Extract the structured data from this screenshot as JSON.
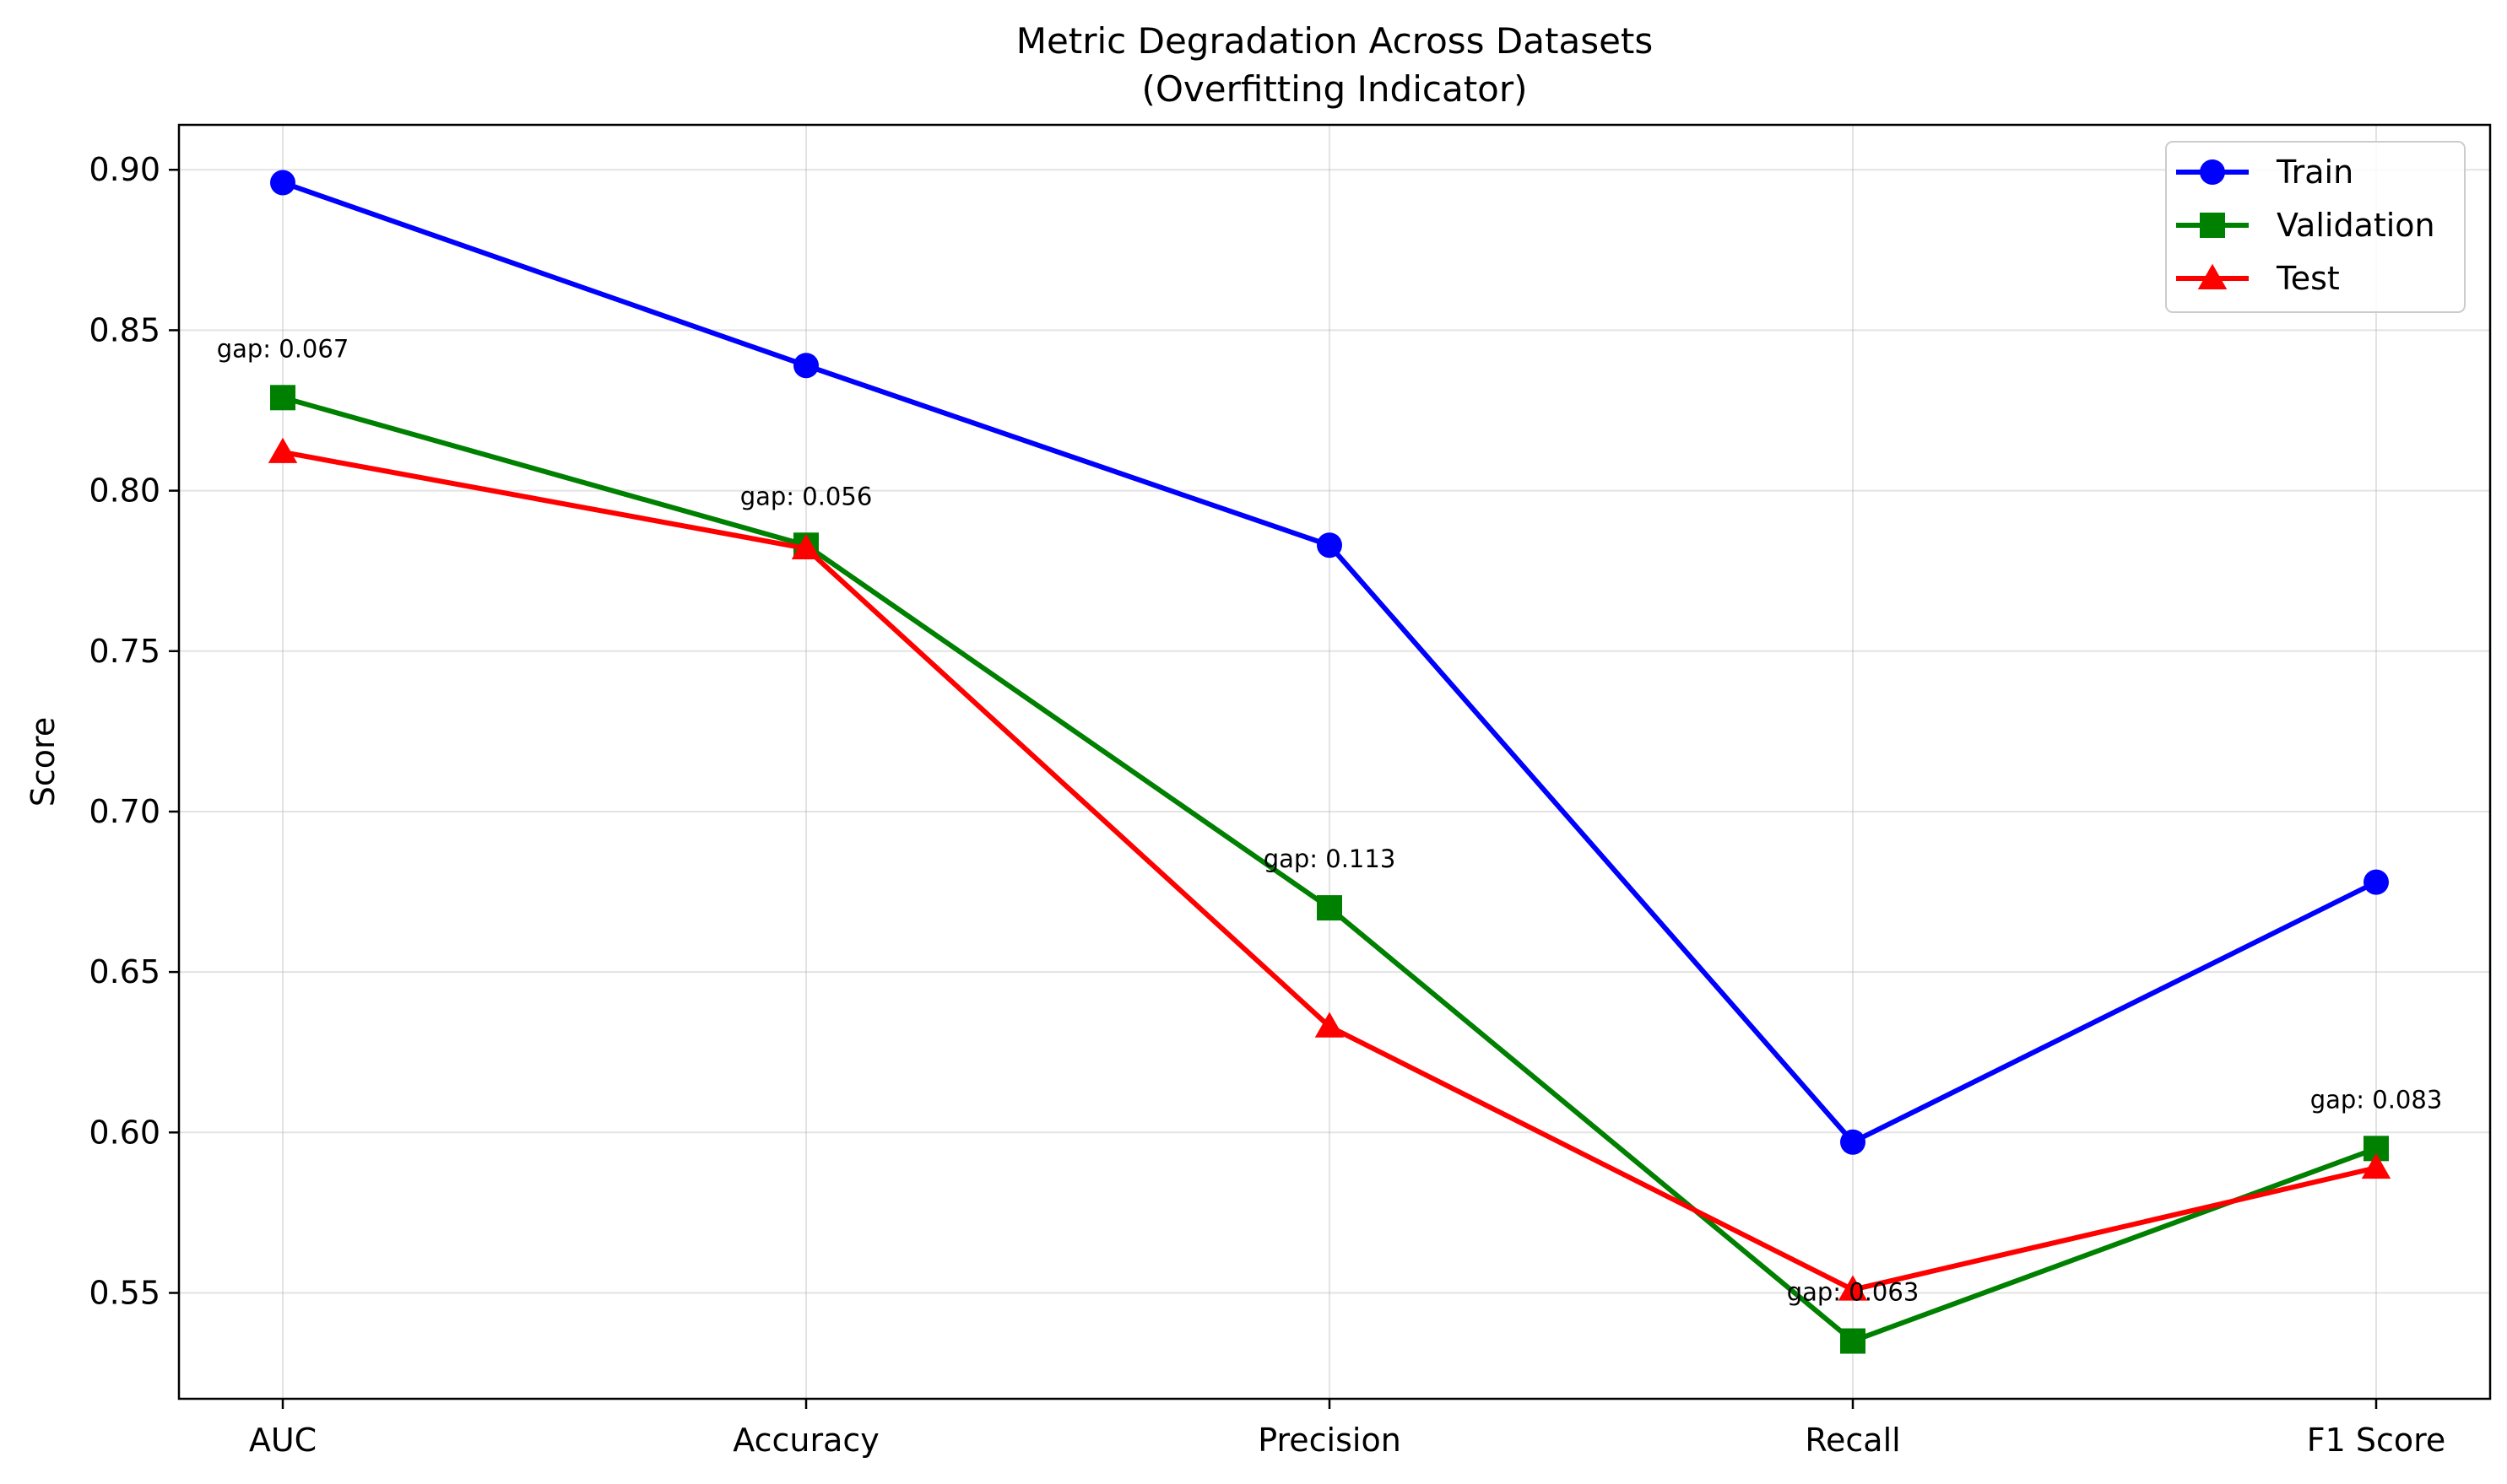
{
  "chart_data": {
    "type": "line",
    "title": "Metric Degradation Across Datasets",
    "subtitle": "(Overfitting Indicator)",
    "xlabel": "",
    "ylabel": "Score",
    "categories": [
      "AUC",
      "Accuracy",
      "Precision",
      "Recall",
      "F1 Score"
    ],
    "ylim": [
      0.517,
      0.914
    ],
    "yticks": [
      0.55,
      0.6,
      0.65,
      0.7,
      0.75,
      0.8,
      0.85,
      0.9
    ],
    "ytick_labels": [
      "0.55",
      "0.60",
      "0.65",
      "0.70",
      "0.75",
      "0.80",
      "0.85",
      "0.90"
    ],
    "grid": true,
    "legend_position": "top-right",
    "series": [
      {
        "name": "Train",
        "marker": "circle",
        "color": "#0000ff",
        "values": [
          0.896,
          0.839,
          0.783,
          0.597,
          0.678
        ]
      },
      {
        "name": "Validation",
        "marker": "square",
        "color": "#008000",
        "values": [
          0.829,
          0.783,
          0.67,
          0.535,
          0.595
        ]
      },
      {
        "name": "Test",
        "marker": "triangle",
        "color": "#ff0000",
        "values": [
          0.812,
          0.782,
          0.633,
          0.551,
          0.589
        ]
      }
    ],
    "annotations": [
      {
        "category": "AUC",
        "text": "gap: 0.067"
      },
      {
        "category": "Accuracy",
        "text": "gap: 0.056"
      },
      {
        "category": "Precision",
        "text": "gap: 0.113"
      },
      {
        "category": "Recall",
        "text": "gap: 0.063"
      },
      {
        "category": "F1 Score",
        "text": "gap: 0.083"
      }
    ]
  }
}
